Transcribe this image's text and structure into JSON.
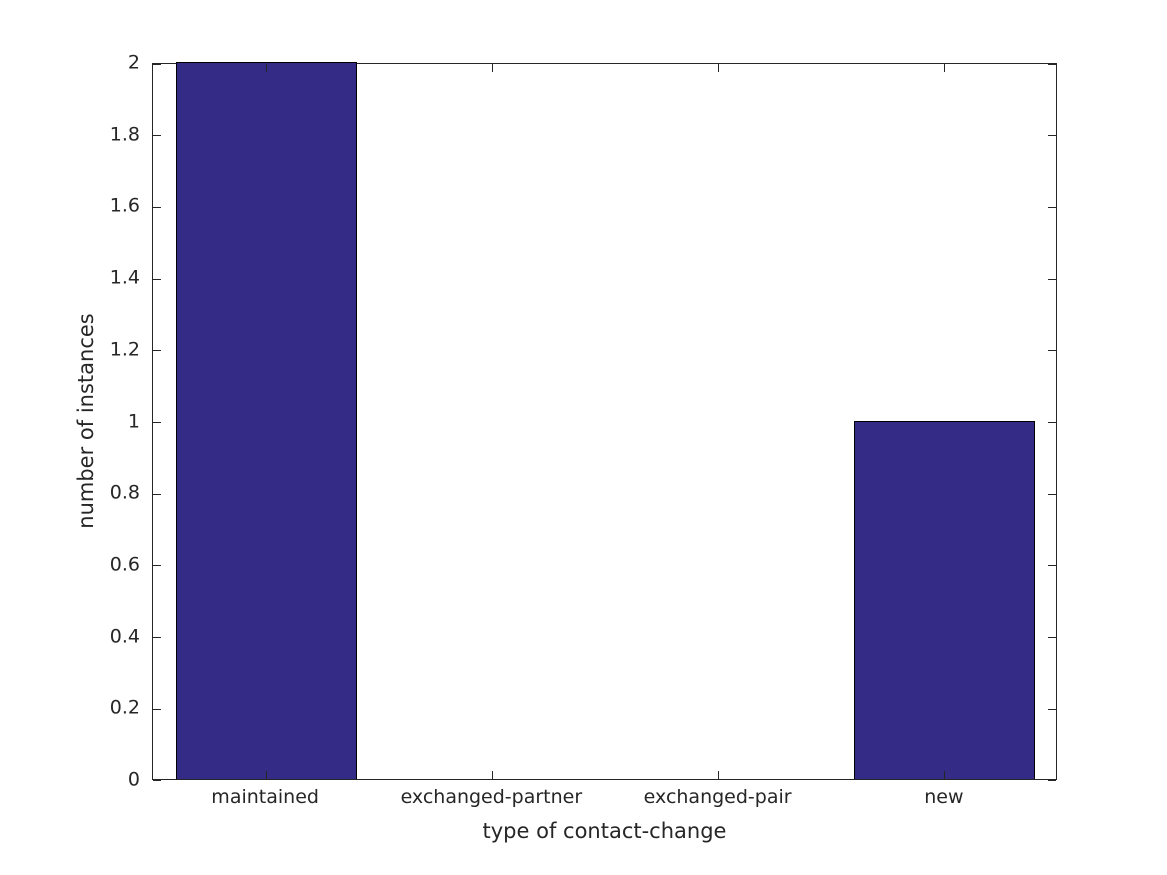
{
  "chart_data": {
    "type": "bar",
    "title": "",
    "categories": [
      "maintained",
      "exchanged-partner",
      "exchanged-pair",
      "new"
    ],
    "values": [
      2,
      0,
      0,
      1
    ],
    "xlabel": "type of contact-change",
    "ylabel": "number of instances",
    "ylim": [
      0,
      2
    ],
    "yticks": [
      {
        "value": 0,
        "label": "0"
      },
      {
        "value": 0.2,
        "label": "0.2"
      },
      {
        "value": 0.4,
        "label": "0.4"
      },
      {
        "value": 0.6,
        "label": "0.6"
      },
      {
        "value": 0.8,
        "label": "0.8"
      },
      {
        "value": 1,
        "label": "1"
      },
      {
        "value": 1.2,
        "label": "1.2"
      },
      {
        "value": 1.4,
        "label": "1.4"
      },
      {
        "value": 1.6,
        "label": "1.6"
      },
      {
        "value": 1.8,
        "label": "1.8"
      },
      {
        "value": 2,
        "label": "2"
      }
    ],
    "bar_width_frac": 0.8,
    "bar_color": "#342b87",
    "bar_edge_color": "#000000",
    "axis_color": "#262626",
    "background_color": "#ffffff",
    "grid": false,
    "legend": null,
    "tick_direction": "in",
    "box": true
  }
}
